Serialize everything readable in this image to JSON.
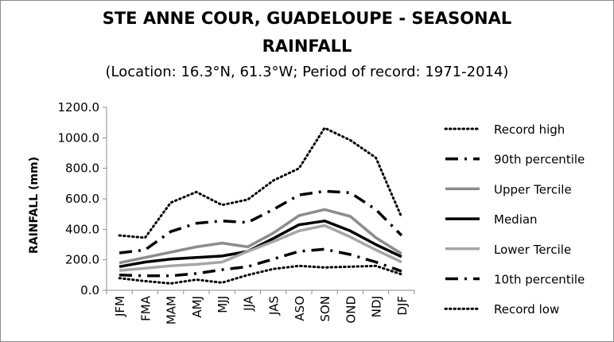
{
  "chart_data": {
    "type": "line",
    "title": "STE ANNE COUR, GUADELOUPE - SEASONAL RAINFALL",
    "title_line1": "STE ANNE COUR, GUADELOUPE - SEASONAL",
    "title_line2": "RAINFALL",
    "subtitle": "(Location: 16.3°N, 61.3°W; Period of record: 1971-2014)",
    "xlabel": "",
    "ylabel": "RAINFALL (mm)",
    "ylim": [
      0,
      1200
    ],
    "yticks": [
      "0.0",
      "200.0",
      "400.0",
      "600.0",
      "800.0",
      "1000.0",
      "1200.0"
    ],
    "grid": false,
    "legend_position": "right",
    "categories": [
      "JFM",
      "FMA",
      "MAM",
      "AMJ",
      "MJJ",
      "JJA",
      "JAS",
      "ASO",
      "SON",
      "OND",
      "NDJ",
      "DJF"
    ],
    "series": [
      {
        "name": "Record high",
        "style": "dotted",
        "color": "#000000",
        "values": [
          360,
          345,
          575,
          645,
          560,
          595,
          720,
          800,
          1065,
          985,
          870,
          480
        ]
      },
      {
        "name": "90th percentile",
        "style": "dashdot",
        "color": "#000000",
        "values": [
          245,
          265,
          385,
          440,
          455,
          445,
          530,
          625,
          650,
          640,
          530,
          360
        ]
      },
      {
        "name": "Upper Tercile",
        "style": "solid-gray",
        "color": "#8c8c8c",
        "values": [
          180,
          215,
          250,
          285,
          310,
          285,
          375,
          490,
          530,
          485,
          345,
          240
        ]
      },
      {
        "name": "Median",
        "style": "solid-black",
        "color": "#000000",
        "values": [
          155,
          185,
          205,
          215,
          225,
          255,
          340,
          430,
          455,
          390,
          300,
          220
        ]
      },
      {
        "name": "Lower Tercile",
        "style": "solid-lightgray",
        "color": "#a6a6a6",
        "values": [
          130,
          145,
          160,
          170,
          185,
          255,
          320,
          390,
          425,
          350,
          265,
          185
        ]
      },
      {
        "name": "10th percentile",
        "style": "dashdot",
        "color": "#000000",
        "values": [
          100,
          95,
          95,
          110,
          135,
          155,
          205,
          255,
          270,
          235,
          185,
          125
        ]
      },
      {
        "name": "Record low",
        "style": "dotted",
        "color": "#000000",
        "values": [
          80,
          60,
          45,
          70,
          50,
          100,
          140,
          160,
          150,
          155,
          160,
          105
        ]
      }
    ]
  }
}
